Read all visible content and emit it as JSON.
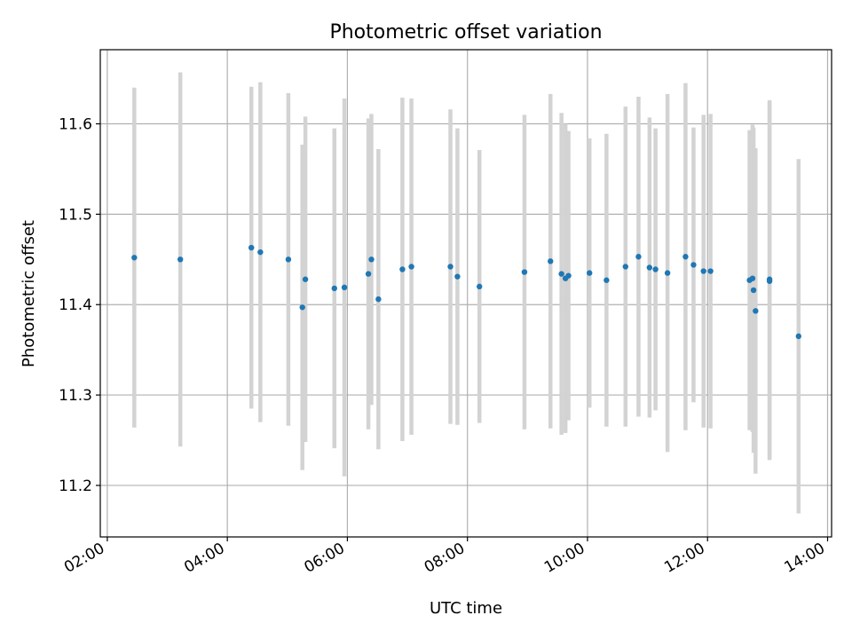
{
  "chart_data": {
    "type": "scatter",
    "title": "Photometric offset variation",
    "xlabel": "UTC time",
    "ylabel": "Photometric offset",
    "x_ticks": [
      "02:00",
      "04:00",
      "06:00",
      "08:00",
      "10:00",
      "12:00",
      "14:00"
    ],
    "y_ticks": [
      "11.2",
      "11.3",
      "11.4",
      "11.5",
      "11.6"
    ],
    "xlim": [
      "01:53",
      "14:04"
    ],
    "ylim": [
      11.143,
      11.682
    ],
    "grid": true,
    "colors": {
      "point": "#1f77b4",
      "errorbar": "#d3d3d3",
      "grid": "#b0b0b0"
    },
    "points": [
      {
        "x": "02:27",
        "y": 11.452,
        "err": 0.188
      },
      {
        "x": "03:13",
        "y": 11.45,
        "err": 0.207
      },
      {
        "x": "04:24",
        "y": 11.463,
        "err": 0.178
      },
      {
        "x": "04:33",
        "y": 11.458,
        "err": 0.188
      },
      {
        "x": "05:01",
        "y": 11.45,
        "err": 0.184
      },
      {
        "x": "05:15",
        "y": 11.397,
        "err": 0.18
      },
      {
        "x": "05:18",
        "y": 11.428,
        "err": 0.18
      },
      {
        "x": "05:47",
        "y": 11.418,
        "err": 0.177
      },
      {
        "x": "05:57",
        "y": 11.419,
        "err": 0.209
      },
      {
        "x": "06:21",
        "y": 11.434,
        "err": 0.172
      },
      {
        "x": "06:24",
        "y": 11.45,
        "err": 0.161
      },
      {
        "x": "06:31",
        "y": 11.406,
        "err": 0.166
      },
      {
        "x": "06:55",
        "y": 11.439,
        "err": 0.19
      },
      {
        "x": "07:04",
        "y": 11.442,
        "err": 0.186
      },
      {
        "x": "07:43",
        "y": 11.442,
        "err": 0.174
      },
      {
        "x": "07:50",
        "y": 11.431,
        "err": 0.164
      },
      {
        "x": "08:12",
        "y": 11.42,
        "err": 0.151
      },
      {
        "x": "08:57",
        "y": 11.436,
        "err": 0.174
      },
      {
        "x": "09:23",
        "y": 11.448,
        "err": 0.185
      },
      {
        "x": "09:34",
        "y": 11.434,
        "err": 0.178
      },
      {
        "x": "09:38",
        "y": 11.429,
        "err": 0.171
      },
      {
        "x": "09:41",
        "y": 11.432,
        "err": 0.16
      },
      {
        "x": "10:02",
        "y": 11.435,
        "err": 0.149
      },
      {
        "x": "10:19",
        "y": 11.427,
        "err": 0.162
      },
      {
        "x": "10:38",
        "y": 11.442,
        "err": 0.177
      },
      {
        "x": "10:51",
        "y": 11.453,
        "err": 0.177
      },
      {
        "x": "11:02",
        "y": 11.441,
        "err": 0.166
      },
      {
        "x": "11:08",
        "y": 11.439,
        "err": 0.156
      },
      {
        "x": "11:20",
        "y": 11.435,
        "err": 0.198
      },
      {
        "x": "11:38",
        "y": 11.453,
        "err": 0.192
      },
      {
        "x": "11:46",
        "y": 11.444,
        "err": 0.152
      },
      {
        "x": "11:56",
        "y": 11.437,
        "err": 0.173
      },
      {
        "x": "12:03",
        "y": 11.437,
        "err": 0.174
      },
      {
        "x": "12:42",
        "y": 11.427,
        "err": 0.166
      },
      {
        "x": "12:45",
        "y": 11.429,
        "err": 0.17
      },
      {
        "x": "12:46",
        "y": 11.416,
        "err": 0.18
      },
      {
        "x": "12:48",
        "y": 11.393,
        "err": 0.18
      },
      {
        "x": "13:02",
        "y": 11.428,
        "err": 0.198
      },
      {
        "x": "13:02",
        "y": 11.426,
        "err": 0.198
      },
      {
        "x": "13:31",
        "y": 11.365,
        "err": 0.196
      }
    ]
  }
}
